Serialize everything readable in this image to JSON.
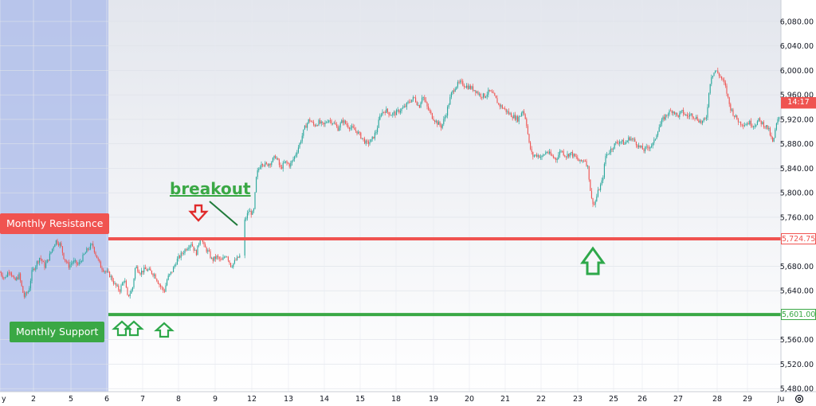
{
  "chart_data": {
    "type": "candlestick",
    "y_ticks": [
      6080,
      6040,
      6000,
      5960,
      5920,
      5880,
      5840,
      5800,
      5760,
      5680,
      5640,
      5560,
      5520,
      5480
    ],
    "y_tick_labels": [
      "6,080.00",
      "6,040.00",
      "6,000.00",
      "5,960.00",
      "5,920.00",
      "5,880.00",
      "5,840.00",
      "5,800.00",
      "5,760.00",
      "5,680.00",
      "5,640.00",
      "5,560.00",
      "5,520.00",
      "5,480.00"
    ],
    "ylim": [
      5475,
      6115
    ],
    "x_categories": [
      "y",
      "2",
      "5",
      "6",
      "7",
      "8",
      "9",
      "12",
      "13",
      "14",
      "15",
      "18",
      "19",
      "20",
      "21",
      "22",
      "23",
      "25",
      "26",
      "27",
      "28",
      "29",
      "Ju"
    ],
    "levels": [
      {
        "name": "Monthly Resistance",
        "value": 5724.75,
        "value_label": "5,724.75",
        "color": "#f05350"
      },
      {
        "name": "Monthly Support",
        "value": 5601.0,
        "value_label": "5,601.00",
        "color": "#3aa845"
      }
    ],
    "current_price_tag": "14:17",
    "current_price": 5935,
    "annotations": {
      "breakout_text": "breakout"
    },
    "colors": {
      "up": "#26a69a",
      "down": "#ef5350",
      "resistance": "#f05350",
      "support": "#3aa845",
      "highlight": "#aab9ea"
    },
    "series_path": [
      [
        0,
        5670
      ],
      [
        6,
        5660
      ],
      [
        12,
        5675
      ],
      [
        18,
        5655
      ],
      [
        24,
        5665
      ],
      [
        30,
        5630
      ],
      [
        36,
        5640
      ],
      [
        40,
        5670
      ],
      [
        46,
        5685
      ],
      [
        50,
        5695
      ],
      [
        56,
        5680
      ],
      [
        60,
        5690
      ],
      [
        66,
        5710
      ],
      [
        70,
        5722
      ],
      [
        76,
        5715
      ],
      [
        80,
        5695
      ],
      [
        86,
        5680
      ],
      [
        92,
        5688
      ],
      [
        98,
        5682
      ],
      [
        104,
        5695
      ],
      [
        110,
        5708
      ],
      [
        116,
        5715
      ],
      [
        120,
        5700
      ],
      [
        126,
        5680
      ],
      [
        132,
        5672
      ],
      [
        138,
        5665
      ],
      [
        144,
        5650
      ],
      [
        150,
        5640
      ],
      [
        156,
        5660
      ],
      [
        160,
        5630
      ],
      [
        166,
        5642
      ],
      [
        170,
        5680
      ],
      [
        176,
        5670
      ],
      [
        182,
        5675
      ],
      [
        188,
        5672
      ],
      [
        194,
        5666
      ],
      [
        200,
        5650
      ],
      [
        206,
        5638
      ],
      [
        210,
        5660
      ],
      [
        216,
        5672
      ],
      [
        222,
        5690
      ],
      [
        228,
        5700
      ],
      [
        234,
        5710
      ],
      [
        240,
        5718
      ],
      [
        246,
        5700
      ],
      [
        252,
        5730
      ],
      [
        256,
        5712
      ],
      [
        262,
        5702
      ],
      [
        266,
        5690
      ],
      [
        272,
        5695
      ],
      [
        278,
        5688
      ],
      [
        284,
        5700
      ],
      [
        290,
        5680
      ],
      [
        296,
        5690
      ],
      [
        302,
        5698
      ],
      [
        306,
        5750
      ],
      [
        312,
        5770
      ],
      [
        318,
        5765
      ],
      [
        322,
        5830
      ],
      [
        328,
        5850
      ],
      [
        334,
        5845
      ],
      [
        340,
        5850
      ],
      [
        346,
        5860
      ],
      [
        352,
        5840
      ],
      [
        358,
        5850
      ],
      [
        364,
        5845
      ],
      [
        370,
        5860
      ],
      [
        376,
        5880
      ],
      [
        382,
        5905
      ],
      [
        388,
        5920
      ],
      [
        394,
        5910
      ],
      [
        400,
        5915
      ],
      [
        406,
        5910
      ],
      [
        412,
        5920
      ],
      [
        418,
        5915
      ],
      [
        424,
        5905
      ],
      [
        430,
        5918
      ],
      [
        436,
        5910
      ],
      [
        442,
        5905
      ],
      [
        448,
        5900
      ],
      [
        454,
        5890
      ],
      [
        460,
        5880
      ],
      [
        466,
        5885
      ],
      [
        472,
        5900
      ],
      [
        478,
        5930
      ],
      [
        484,
        5935
      ],
      [
        490,
        5928
      ],
      [
        496,
        5930
      ],
      [
        502,
        5935
      ],
      [
        508,
        5940
      ],
      [
        514,
        5950
      ],
      [
        520,
        5955
      ],
      [
        526,
        5940
      ],
      [
        530,
        5960
      ],
      [
        536,
        5940
      ],
      [
        542,
        5925
      ],
      [
        548,
        5915
      ],
      [
        554,
        5908
      ],
      [
        560,
        5930
      ],
      [
        566,
        5960
      ],
      [
        572,
        5975
      ],
      [
        578,
        5980
      ],
      [
        584,
        5975
      ],
      [
        590,
        5972
      ],
      [
        596,
        5968
      ],
      [
        602,
        5960
      ],
      [
        608,
        5958
      ],
      [
        614,
        5966
      ],
      [
        620,
        5958
      ],
      [
        626,
        5944
      ],
      [
        632,
        5938
      ],
      [
        638,
        5930
      ],
      [
        644,
        5925
      ],
      [
        650,
        5920
      ],
      [
        656,
        5935
      ],
      [
        660,
        5920
      ],
      [
        664,
        5880
      ],
      [
        668,
        5860
      ],
      [
        674,
        5862
      ],
      [
        680,
        5858
      ],
      [
        686,
        5868
      ],
      [
        692,
        5860
      ],
      [
        698,
        5855
      ],
      [
        704,
        5870
      ],
      [
        710,
        5860
      ],
      [
        716,
        5865
      ],
      [
        722,
        5858
      ],
      [
        728,
        5850
      ],
      [
        734,
        5855
      ],
      [
        738,
        5840
      ],
      [
        742,
        5790
      ],
      [
        746,
        5780
      ],
      [
        750,
        5800
      ],
      [
        756,
        5820
      ],
      [
        760,
        5860
      ],
      [
        766,
        5870
      ],
      [
        772,
        5880
      ],
      [
        778,
        5885
      ],
      [
        784,
        5880
      ],
      [
        790,
        5890
      ],
      [
        796,
        5885
      ],
      [
        802,
        5875
      ],
      [
        808,
        5870
      ],
      [
        814,
        5875
      ],
      [
        820,
        5880
      ],
      [
        826,
        5905
      ],
      [
        832,
        5920
      ],
      [
        838,
        5930
      ],
      [
        844,
        5935
      ],
      [
        850,
        5925
      ],
      [
        856,
        5932
      ],
      [
        862,
        5925
      ],
      [
        868,
        5928
      ],
      [
        874,
        5922
      ],
      [
        880,
        5915
      ],
      [
        886,
        5920
      ],
      [
        892,
        5990
      ],
      [
        898,
        6000
      ],
      [
        904,
        5990
      ],
      [
        910,
        5975
      ],
      [
        916,
        5940
      ],
      [
        922,
        5925
      ],
      [
        928,
        5915
      ],
      [
        934,
        5912
      ],
      [
        940,
        5915
      ],
      [
        946,
        5910
      ],
      [
        952,
        5918
      ],
      [
        958,
        5912
      ],
      [
        964,
        5905
      ],
      [
        970,
        5880
      ],
      [
        974,
        5910
      ],
      [
        978,
        5925
      ]
    ]
  },
  "x_tick_positions": [
    0,
    42,
    89,
    134,
    179,
    224,
    270,
    316,
    362,
    407,
    452,
    497,
    544,
    589,
    634,
    679,
    725,
    770,
    806,
    851,
    900,
    938,
    980
  ]
}
